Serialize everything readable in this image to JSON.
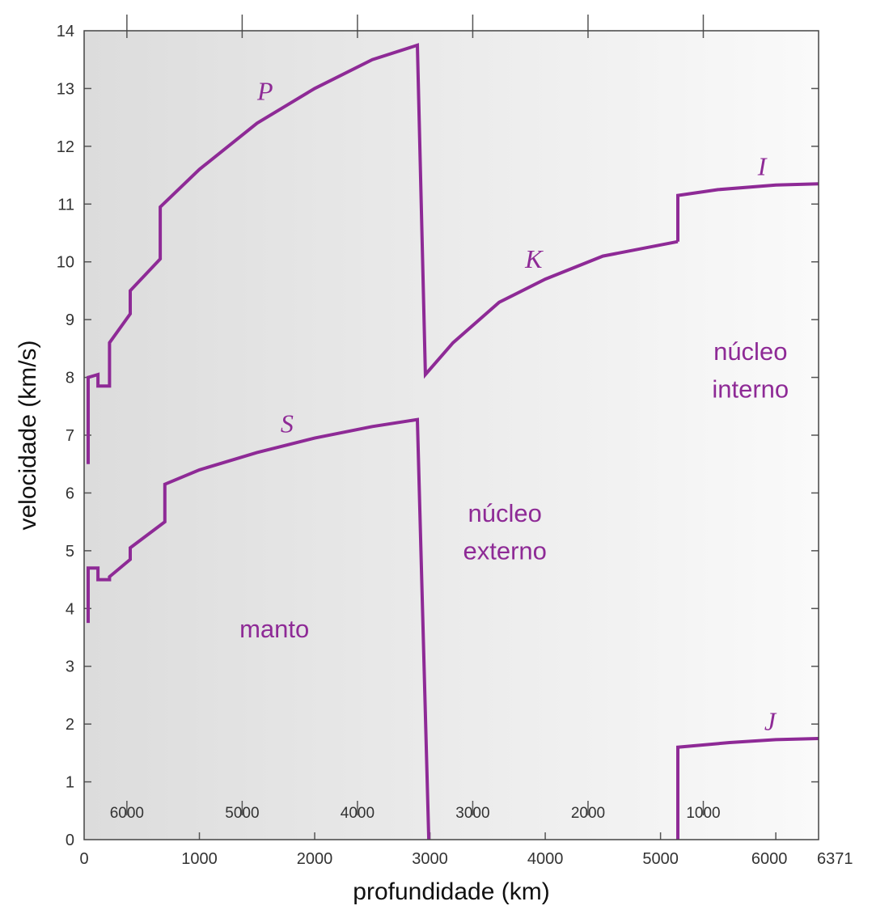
{
  "chart_data": {
    "type": "line",
    "title": "",
    "xlabel": "profundidade (km)",
    "ylabel": "velocidade (km/s)",
    "xlim": [
      0,
      6371
    ],
    "ylim": [
      0,
      14
    ],
    "x_ticks": [
      {
        "value": 0,
        "label": "0"
      },
      {
        "value": 1000,
        "label": "1000"
      },
      {
        "value": 2000,
        "label": "2000"
      },
      {
        "value": 3000,
        "label": "3000"
      },
      {
        "value": 4000,
        "label": "4000"
      },
      {
        "value": 5000,
        "label": "5000"
      },
      {
        "value": 6000,
        "label": "6000"
      },
      {
        "value": 6371,
        "label": "6371"
      }
    ],
    "y_ticks": [
      {
        "value": 0,
        "label": "0"
      },
      {
        "value": 1,
        "label": "1"
      },
      {
        "value": 2,
        "label": "2"
      },
      {
        "value": 3,
        "label": "3"
      },
      {
        "value": 4,
        "label": "4"
      },
      {
        "value": 5,
        "label": "5"
      },
      {
        "value": 6,
        "label": "6"
      },
      {
        "value": 7,
        "label": "7"
      },
      {
        "value": 8,
        "label": "8"
      },
      {
        "value": 9,
        "label": "9"
      },
      {
        "value": 10,
        "label": "10"
      },
      {
        "value": 11,
        "label": "11"
      },
      {
        "value": 12,
        "label": "12"
      },
      {
        "value": 13,
        "label": "13"
      },
      {
        "value": 14,
        "label": "14"
      }
    ],
    "radius_ticks": [
      {
        "value": 371,
        "label": "6000"
      },
      {
        "value": 1371,
        "label": "5000"
      },
      {
        "value": 2371,
        "label": "4000"
      },
      {
        "value": 3371,
        "label": "3000"
      },
      {
        "value": 4371,
        "label": "2000"
      },
      {
        "value": 5371,
        "label": "1000"
      }
    ],
    "grid": false,
    "curve_color": "#8e2a96",
    "series": [
      {
        "name": "P",
        "label_at": [
          1570,
          12.8
        ],
        "points": [
          [
            35,
            6.5
          ],
          [
            35,
            8.0
          ],
          [
            120,
            8.05
          ],
          [
            120,
            7.85
          ],
          [
            220,
            7.85
          ],
          [
            220,
            8.6
          ],
          [
            400,
            9.1
          ],
          [
            400,
            9.5
          ],
          [
            660,
            10.05
          ],
          [
            660,
            10.95
          ],
          [
            1000,
            11.6
          ],
          [
            1500,
            12.4
          ],
          [
            2000,
            13.0
          ],
          [
            2500,
            13.5
          ],
          [
            2891,
            13.75
          ],
          [
            2960,
            8.05
          ],
          [
            3200,
            8.6
          ],
          [
            3600,
            9.3
          ],
          [
            4000,
            9.7
          ],
          [
            4500,
            10.1
          ],
          [
            5150,
            10.35
          ]
        ]
      },
      {
        "name": "K",
        "label_at": [
          3900,
          9.9
        ],
        "points": []
      },
      {
        "name": "I",
        "label_at": [
          5880,
          11.5
        ],
        "points": [
          [
            5150,
            10.35
          ],
          [
            5150,
            11.15
          ],
          [
            5500,
            11.25
          ],
          [
            6000,
            11.33
          ],
          [
            6371,
            11.35
          ]
        ]
      },
      {
        "name": "S",
        "label_at": [
          1760,
          7.05
        ],
        "points": [
          [
            35,
            3.75
          ],
          [
            35,
            4.7
          ],
          [
            120,
            4.7
          ],
          [
            120,
            4.5
          ],
          [
            220,
            4.5
          ],
          [
            220,
            4.55
          ],
          [
            400,
            4.85
          ],
          [
            400,
            5.05
          ],
          [
            700,
            5.5
          ],
          [
            700,
            6.15
          ],
          [
            1000,
            6.4
          ],
          [
            1500,
            6.7
          ],
          [
            2000,
            6.95
          ],
          [
            2500,
            7.15
          ],
          [
            2891,
            7.27
          ],
          [
            2990,
            0
          ]
        ]
      },
      {
        "name": "J",
        "label_at": [
          5950,
          1.9
        ],
        "points": [
          [
            5150,
            0
          ],
          [
            5150,
            1.6
          ],
          [
            5600,
            1.68
          ],
          [
            6000,
            1.73
          ],
          [
            6371,
            1.75
          ]
        ]
      }
    ],
    "annotations": [
      {
        "id": "manto",
        "lines": [
          "manto"
        ],
        "at": [
          1650,
          3.5
        ]
      },
      {
        "id": "nucleo-externo",
        "lines": [
          "núcleo",
          "externo"
        ],
        "at": [
          3650,
          5.5
        ]
      },
      {
        "id": "nucleo-interno",
        "lines": [
          "núcleo",
          "interno"
        ],
        "at": [
          5780,
          8.3
        ]
      }
    ]
  }
}
